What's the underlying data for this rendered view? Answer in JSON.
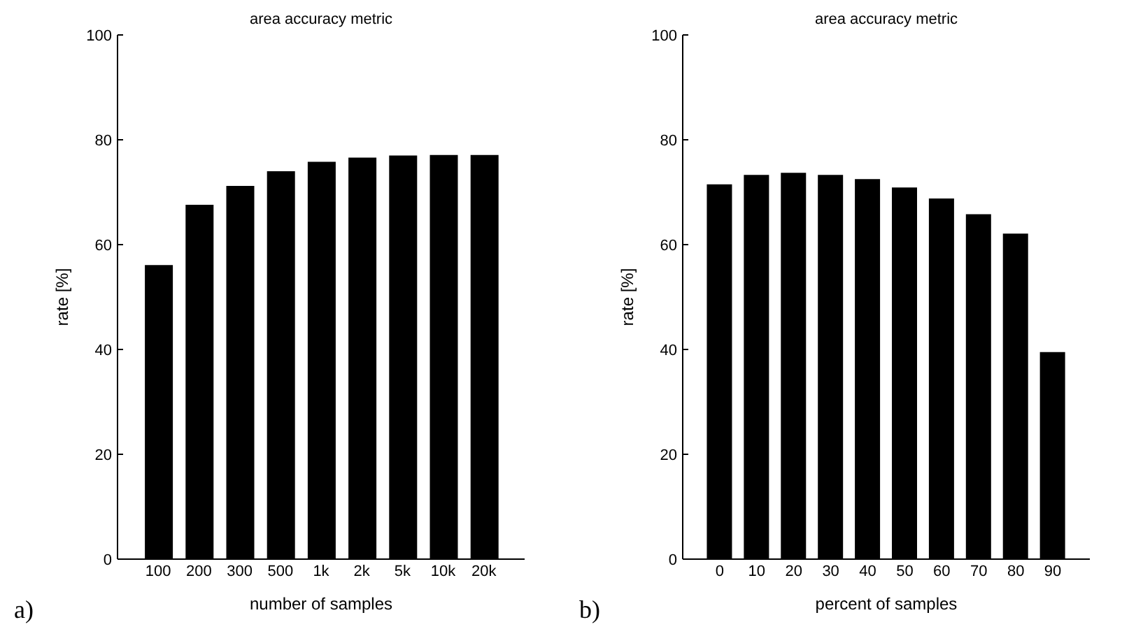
{
  "chart_data": [
    {
      "type": "bar",
      "title": "area accuracy metric",
      "xlabel": "number of samples",
      "ylabel": "rate [%]",
      "categories": [
        "100",
        "200",
        "300",
        "500",
        "1k",
        "2k",
        "5k",
        "10k",
        "20k"
      ],
      "values": [
        56.1,
        67.6,
        71.2,
        74.0,
        75.8,
        76.6,
        77.0,
        77.1,
        77.1
      ],
      "color": "#000000",
      "ylim": [
        0,
        100
      ],
      "yticks": [
        0,
        20,
        40,
        60,
        80,
        100
      ],
      "grid": false,
      "annotations": [
        "a)"
      ]
    },
    {
      "type": "bar",
      "title": "area accuracy metric",
      "xlabel": "percent of samples",
      "ylabel": "rate [%]",
      "categories": [
        "0",
        "10",
        "20",
        "30",
        "40",
        "50",
        "60",
        "70",
        "80",
        "90"
      ],
      "values": [
        71.5,
        73.3,
        73.7,
        73.3,
        72.5,
        70.9,
        68.8,
        65.8,
        62.1,
        39.5
      ],
      "color": "#000000",
      "ylim": [
        0,
        100
      ],
      "yticks": [
        0,
        20,
        40,
        60,
        80,
        100
      ],
      "grid": false,
      "annotations": [
        "b)"
      ]
    }
  ]
}
